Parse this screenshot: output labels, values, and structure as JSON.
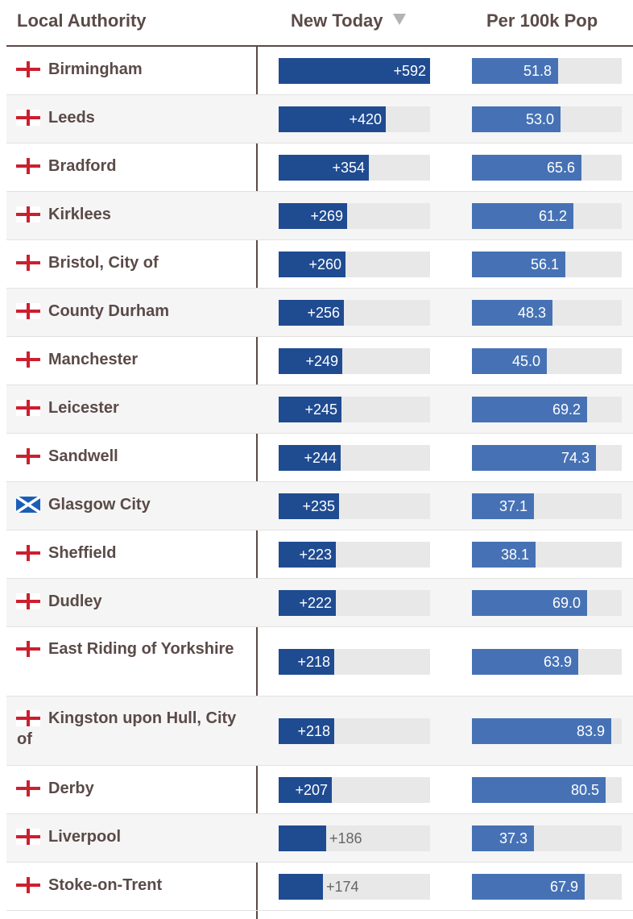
{
  "header": {
    "local_authority": "Local Authority",
    "new_today": "New Today",
    "per_100k": "Per 100k Pop"
  },
  "colors": {
    "text": "#5a4a48",
    "new_today_bar": "#1f4b91",
    "per_100k_bar": "#4672b5",
    "track": "#e8e8e8",
    "row_alt": "#f5f5f5"
  },
  "scale": {
    "new_today_max": 592,
    "per_100k_max": 90
  },
  "rows": [
    {
      "name": "Birmingham",
      "flag": "england",
      "new_today": 592,
      "new_today_label": "+592",
      "per_100k": 51.8,
      "per_100k_label": "51.8"
    },
    {
      "name": "Leeds",
      "flag": "england",
      "new_today": 420,
      "new_today_label": "+420",
      "per_100k": 53.0,
      "per_100k_label": "53.0"
    },
    {
      "name": "Bradford",
      "flag": "england",
      "new_today": 354,
      "new_today_label": "+354",
      "per_100k": 65.6,
      "per_100k_label": "65.6"
    },
    {
      "name": "Kirklees",
      "flag": "england",
      "new_today": 269,
      "new_today_label": "+269",
      "per_100k": 61.2,
      "per_100k_label": "61.2"
    },
    {
      "name": "Bristol, City of",
      "flag": "england",
      "new_today": 260,
      "new_today_label": "+260",
      "per_100k": 56.1,
      "per_100k_label": "56.1"
    },
    {
      "name": "County Durham",
      "flag": "england",
      "new_today": 256,
      "new_today_label": "+256",
      "per_100k": 48.3,
      "per_100k_label": "48.3"
    },
    {
      "name": "Manchester",
      "flag": "england",
      "new_today": 249,
      "new_today_label": "+249",
      "per_100k": 45.0,
      "per_100k_label": "45.0"
    },
    {
      "name": "Leicester",
      "flag": "england",
      "new_today": 245,
      "new_today_label": "+245",
      "per_100k": 69.2,
      "per_100k_label": "69.2"
    },
    {
      "name": "Sandwell",
      "flag": "england",
      "new_today": 244,
      "new_today_label": "+244",
      "per_100k": 74.3,
      "per_100k_label": "74.3"
    },
    {
      "name": "Glasgow City",
      "flag": "scotland",
      "new_today": 235,
      "new_today_label": "+235",
      "per_100k": 37.1,
      "per_100k_label": "37.1"
    },
    {
      "name": "Sheffield",
      "flag": "england",
      "new_today": 223,
      "new_today_label": "+223",
      "per_100k": 38.1,
      "per_100k_label": "38.1"
    },
    {
      "name": "Dudley",
      "flag": "england",
      "new_today": 222,
      "new_today_label": "+222",
      "per_100k": 69.0,
      "per_100k_label": "69.0"
    },
    {
      "name": "East Riding of Yorkshire",
      "flag": "england",
      "new_today": 218,
      "new_today_label": "+218",
      "per_100k": 63.9,
      "per_100k_label": "63.9"
    },
    {
      "name": "Kingston upon Hull, City of",
      "flag": "england",
      "new_today": 218,
      "new_today_label": "+218",
      "per_100k": 83.9,
      "per_100k_label": "83.9"
    },
    {
      "name": "Derby",
      "flag": "england",
      "new_today": 207,
      "new_today_label": "+207",
      "per_100k": 80.5,
      "per_100k_label": "80.5"
    },
    {
      "name": "Liverpool",
      "flag": "england",
      "new_today": 186,
      "new_today_label": "+186",
      "per_100k": 37.3,
      "per_100k_label": "37.3"
    },
    {
      "name": "Stoke-on-Trent",
      "flag": "england",
      "new_today": 174,
      "new_today_label": "+174",
      "per_100k": 67.9,
      "per_100k_label": "67.9"
    }
  ]
}
